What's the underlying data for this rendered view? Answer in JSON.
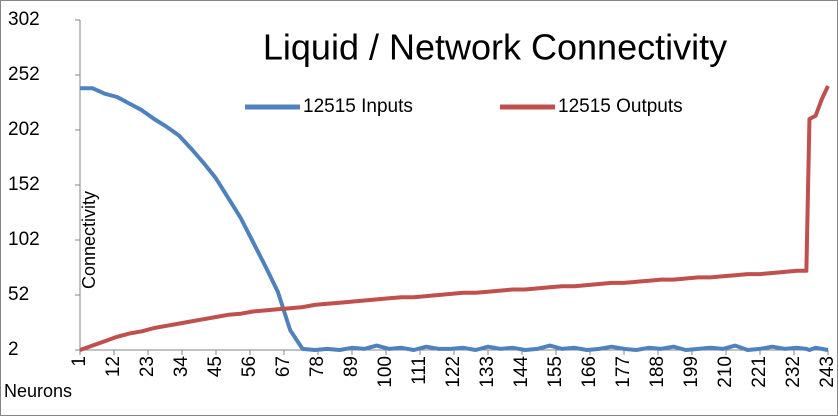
{
  "chart_data": {
    "type": "line",
    "title": "Liquid / Network Connectivity",
    "x_label": "Neurons",
    "y_label": "Connectivity",
    "x": [
      1,
      5,
      9,
      13,
      17,
      21,
      25,
      29,
      33,
      37,
      41,
      45,
      49,
      53,
      57,
      61,
      65,
      69,
      73,
      77,
      81,
      85,
      89,
      93,
      97,
      101,
      105,
      109,
      113,
      117,
      121,
      125,
      129,
      133,
      137,
      141,
      145,
      149,
      153,
      157,
      161,
      165,
      169,
      173,
      177,
      181,
      185,
      189,
      193,
      197,
      201,
      205,
      209,
      213,
      217,
      221,
      225,
      229,
      233,
      236,
      237,
      239,
      241,
      243
    ],
    "series": [
      {
        "name": "12515 Inputs",
        "color": "#4f81bd",
        "values": [
          240,
          240,
          235,
          232,
          226,
          220,
          212,
          205,
          197,
          185,
          172,
          158,
          140,
          122,
          100,
          78,
          55,
          20,
          3,
          2,
          3,
          2,
          4,
          3,
          6,
          3,
          4,
          2,
          5,
          3,
          3,
          4,
          2,
          5,
          3,
          4,
          2,
          3,
          6,
          3,
          4,
          2,
          3,
          5,
          3,
          2,
          4,
          3,
          5,
          2,
          3,
          4,
          3,
          6,
          2,
          3,
          5,
          3,
          4,
          3,
          2,
          4,
          3,
          2
        ]
      },
      {
        "name": "12515 Outputs",
        "color": "#c0504d",
        "values": [
          2,
          6,
          10,
          14,
          17,
          19,
          22,
          24,
          26,
          28,
          30,
          32,
          34,
          35,
          37,
          38,
          39,
          40,
          41,
          43,
          44,
          45,
          46,
          47,
          48,
          49,
          50,
          50,
          51,
          52,
          53,
          54,
          54,
          55,
          56,
          57,
          57,
          58,
          59,
          60,
          60,
          61,
          62,
          63,
          63,
          64,
          65,
          66,
          66,
          67,
          68,
          68,
          69,
          70,
          71,
          71,
          72,
          73,
          74,
          74,
          212,
          215,
          230,
          242
        ]
      }
    ],
    "xlim": [
      1,
      243
    ],
    "xticks": [
      1,
      12,
      23,
      34,
      45,
      56,
      67,
      78,
      89,
      100,
      111,
      122,
      133,
      144,
      155,
      166,
      177,
      188,
      199,
      210,
      221,
      232,
      243
    ],
    "ylim": [
      2,
      302
    ],
    "yticks": [
      2,
      52,
      102,
      152,
      202,
      252,
      302
    ],
    "grid": false
  }
}
